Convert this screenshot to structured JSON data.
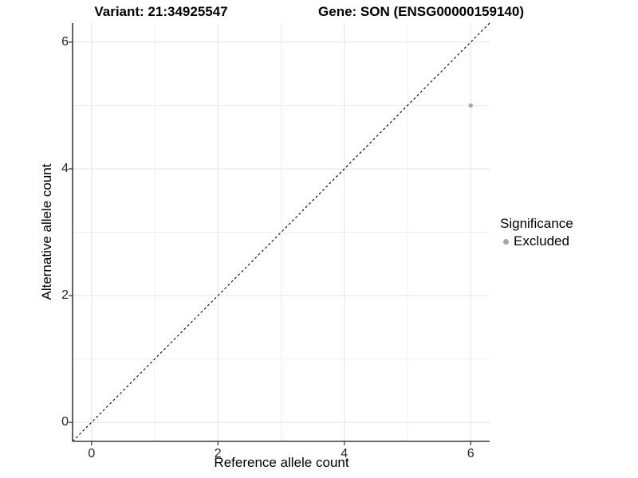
{
  "titles": {
    "variant": "Variant: 21:34925547",
    "gene": "Gene: SON (ENSG00000159140)"
  },
  "chart_data": {
    "type": "scatter",
    "xlabel": "Reference allele count",
    "ylabel": "Alternative allele count",
    "xlim": [
      -0.3,
      6.3
    ],
    "ylim": [
      -0.3,
      6.3
    ],
    "x_ticks": [
      0,
      2,
      4,
      6
    ],
    "y_ticks": [
      0,
      2,
      4,
      6
    ],
    "minor_gridlines": [
      1,
      3,
      5
    ],
    "grid": true,
    "points": [
      {
        "x": 6,
        "y": 5,
        "series": "Excluded"
      }
    ],
    "identity_line": {
      "type": "dashed",
      "slope": 1,
      "intercept": 0
    },
    "legend": {
      "title": "Significance",
      "position": "right",
      "items": [
        {
          "label": "Excluded",
          "color": "#a8a8a8"
        }
      ]
    },
    "colors": {
      "point": "#a8a8a8",
      "grid_major": "#e4e4e4",
      "grid_minor": "#f0f0f0",
      "axis_line": "#3c3c3c",
      "tick_mark": "#333333",
      "dashed_line": "#000000",
      "tick_text": "#262626"
    }
  }
}
